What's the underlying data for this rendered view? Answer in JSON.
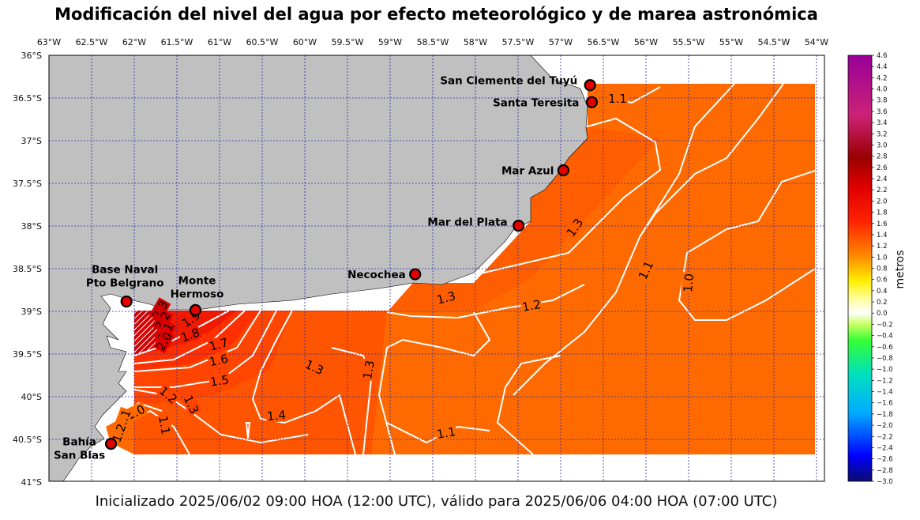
{
  "title": "Modificación del nivel del agua por efecto meteorológico y de marea astronómica",
  "footer": "Inicializado 2025/06/02 09:00 HOA (12:00 UTC), válido para 2025/06/06 04:00 HOA (07:00 UTC)",
  "colorbar": {
    "label": "metros",
    "ticks": [
      "4.6",
      "4.4",
      "4.2",
      "4.0",
      "3.8",
      "3.6",
      "3.4",
      "3.2",
      "3.0",
      "2.8",
      "2.6",
      "2.4",
      "2.2",
      "2.0",
      "1.8",
      "1.6",
      "1.4",
      "1.2",
      "1.0",
      "0.8",
      "0.6",
      "0.4",
      "0.2",
      "0.0",
      "−0.2",
      "−0.4",
      "−0.6",
      "−0.8",
      "−1.0",
      "−1.2",
      "−1.4",
      "−1.6",
      "−1.8",
      "−2.0",
      "−2.2",
      "−2.4",
      "−2.6",
      "−2.8",
      "−3.0"
    ],
    "min": -3.0,
    "max": 4.6
  },
  "map": {
    "lon_range": [
      -63,
      -54
    ],
    "lat_range": [
      -41,
      -36
    ],
    "lon_labels": [
      "63°W",
      "62.5°W",
      "62°W",
      "61.5°W",
      "61°W",
      "60.5°W",
      "60°W",
      "59.5°W",
      "59°W",
      "58.5°W",
      "58°W",
      "57.5°W",
      "57°W",
      "56.5°W",
      "56°W",
      "55.5°W",
      "55°W",
      "54.5°W",
      "54°W"
    ],
    "lat_labels": [
      "36°S",
      "36.5°S",
      "37°S",
      "37.5°S",
      "38°S",
      "38.5°S",
      "39°S",
      "39.5°S",
      "40°S",
      "40.5°S",
      "41°S"
    ],
    "land_color": "#c0c0c0",
    "grid": "dotted-blue"
  },
  "stations": [
    {
      "id": "san-clemente",
      "lines": [
        "San Clemente del Tuyú"
      ],
      "lon": -56.72,
      "lat": -36.35
    },
    {
      "id": "santa-teresita",
      "lines": [
        "Santa Teresita"
      ],
      "lon": -56.7,
      "lat": -36.55
    },
    {
      "id": "mar-azul",
      "lines": [
        "Mar Azul"
      ],
      "lon": -57.03,
      "lat": -37.35
    },
    {
      "id": "mar-del-plata",
      "lines": [
        "Mar del Plata"
      ],
      "lon": -57.55,
      "lat": -38.0
    },
    {
      "id": "necochea",
      "lines": [
        "Necochea"
      ],
      "lon": -58.75,
      "lat": -38.57
    },
    {
      "id": "base-naval",
      "lines": [
        "Base Naval",
        "Pto Belgrano"
      ],
      "lon": -62.1,
      "lat": -38.89
    },
    {
      "id": "monte-hermoso",
      "lines": [
        "Monte",
        "Hermoso"
      ],
      "lon": -61.3,
      "lat": -38.99
    },
    {
      "id": "bahia-san-blas",
      "lines": [
        "Bahía",
        "San Blas"
      ],
      "lon": -62.28,
      "lat": -40.56
    }
  ],
  "contour_labels": [
    "1.1",
    "1.3",
    "1.1",
    "1.0",
    "1.2",
    "1.3",
    "1.3",
    "1.3",
    "1.4",
    "1.1",
    "1.7",
    "1.6",
    "1.5",
    "1.8",
    "1.9",
    "2.3",
    "2.2",
    "2.1",
    "2.0",
    "1.2",
    "1.3",
    "1.1",
    "1.0",
    "1.1",
    "1.2"
  ]
}
